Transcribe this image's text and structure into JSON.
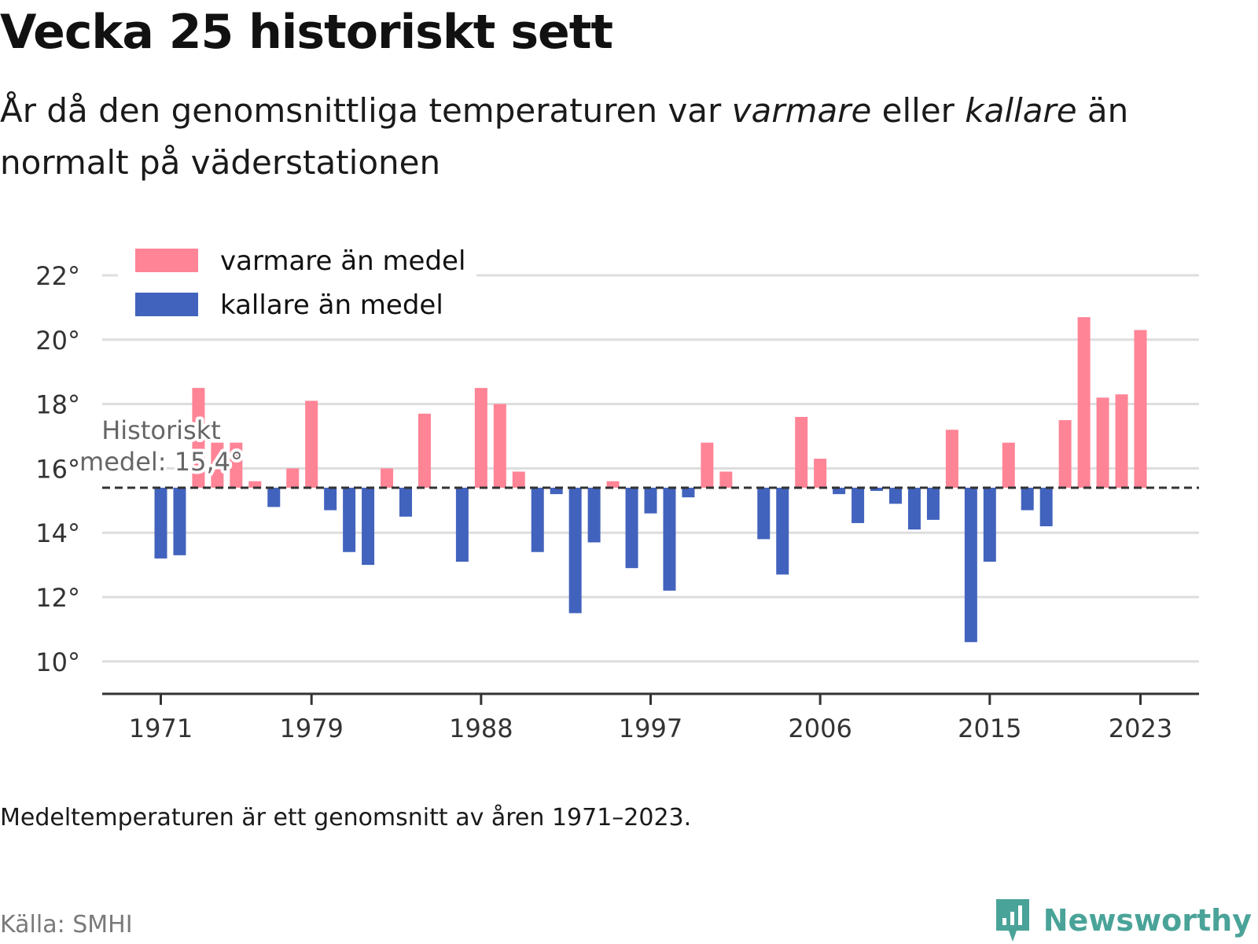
{
  "header": {
    "title": "Vecka 25 historiskt sett",
    "subtitle_pre": "År då den genomsnittliga temperaturen var ",
    "subtitle_warm": "varmare",
    "subtitle_mid": " eller ",
    "subtitle_cold": "kallare",
    "subtitle_post": " än normalt på väderstationen"
  },
  "footer": {
    "note": "Medeltemperaturen är ett genomsnitt av åren 1971–2023.",
    "source": "Källa: SMHI",
    "brand": "Newsworthy"
  },
  "colors": {
    "warm": "#ff8496",
    "cold": "#4263bd",
    "grid": "#dddddd",
    "axis": "#333333",
    "brand": "#4aa398"
  },
  "chart_data": {
    "type": "bar",
    "baseline": 15.4,
    "baseline_label": [
      "Historiskt",
      "medel: 15,4°"
    ],
    "ylim": [
      9,
      22.6
    ],
    "yticks": [
      10,
      12,
      14,
      16,
      18,
      20,
      22
    ],
    "ytick_suffix": "°",
    "xticks": [
      1971,
      1979,
      1988,
      1997,
      2006,
      2015,
      2023
    ],
    "x": [
      1971,
      1972,
      1973,
      1974,
      1975,
      1976,
      1977,
      1978,
      1979,
      1980,
      1981,
      1982,
      1983,
      1984,
      1985,
      1986,
      1987,
      1988,
      1989,
      1990,
      1991,
      1992,
      1993,
      1994,
      1995,
      1996,
      1997,
      1998,
      1999,
      2000,
      2001,
      2002,
      2003,
      2004,
      2005,
      2006,
      2007,
      2008,
      2009,
      2010,
      2011,
      2012,
      2013,
      2014,
      2015,
      2016,
      2017,
      2018,
      2019,
      2020,
      2021,
      2022,
      2023
    ],
    "values": [
      13.2,
      13.3,
      18.5,
      16.8,
      16.8,
      15.6,
      14.8,
      16.0,
      18.1,
      14.7,
      13.4,
      13.0,
      16.0,
      14.5,
      17.7,
      15.4,
      13.1,
      18.5,
      18.0,
      15.9,
      13.4,
      15.2,
      11.5,
      13.7,
      15.6,
      12.9,
      14.6,
      12.2,
      15.1,
      16.8,
      15.9,
      15.4,
      13.8,
      12.7,
      17.6,
      16.3,
      15.2,
      14.3,
      15.3,
      14.9,
      14.1,
      14.4,
      17.2,
      10.6,
      13.1,
      16.8,
      14.7,
      14.2,
      17.5,
      20.7,
      18.2,
      18.3,
      20.3
    ],
    "series": [
      {
        "name": "varmare än medel",
        "color": "#ff8496"
      },
      {
        "name": "kallare än medel",
        "color": "#4263bd"
      }
    ],
    "legend_position": "top-left",
    "grid": true
  }
}
